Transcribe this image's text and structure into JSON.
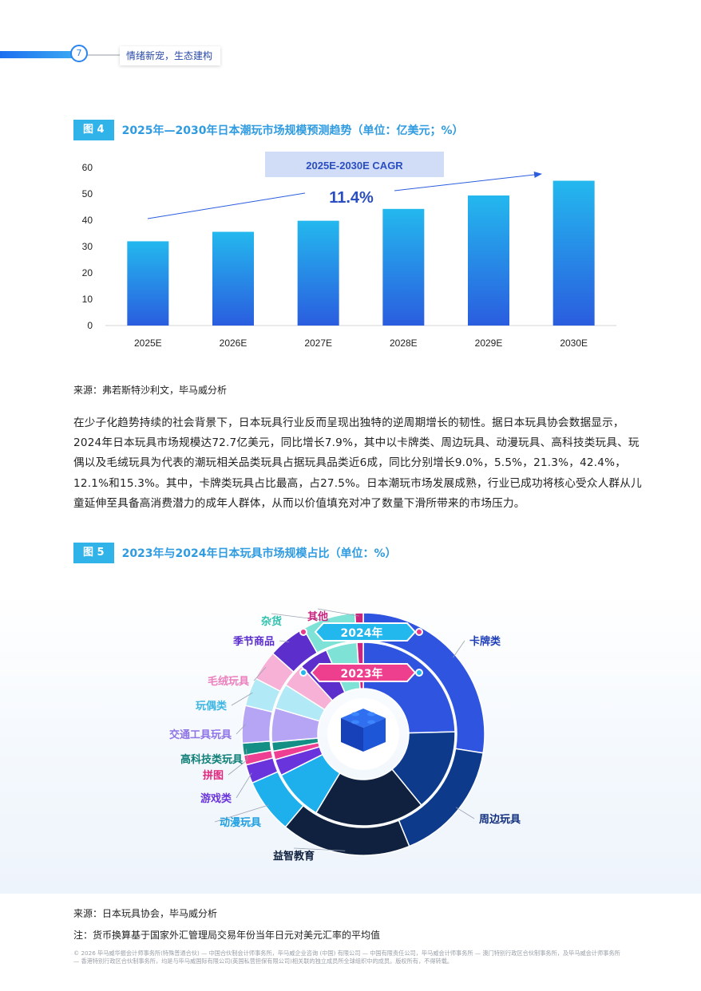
{
  "header": {
    "page_number": "7",
    "section_title": "情绪新宠，生态建构"
  },
  "figure4": {
    "badge": "图 4",
    "title": "2025年—2030年日本潮玩市场规模预测趋势（单位：亿美元；%）",
    "cagr_label": "2025E-2030E CAGR",
    "cagr_value": "11.4%",
    "source": "来源：弗若斯特沙利文，毕马威分析"
  },
  "chart_data": [
    {
      "type": "bar",
      "categories": [
        "2025E",
        "2026E",
        "2027E",
        "2028E",
        "2029E",
        "2030E"
      ],
      "values": [
        32,
        35.6,
        39.8,
        44.3,
        49.4,
        55
      ],
      "ylim": [
        0,
        60
      ],
      "yticks": [
        0,
        10,
        20,
        30,
        40,
        50,
        60
      ],
      "grid": false,
      "gradient_colors": [
        "#24b8ee",
        "#2a5ddf"
      ]
    },
    {
      "type": "pie",
      "rings": [
        {
          "name": "2024年",
          "labels": [
            "卡牌类",
            "周边玩具",
            "益智教育",
            "动漫玩具",
            "游戏类",
            "拼图",
            "高科技类玩具",
            "交通工具玩具",
            "玩偶类",
            "毛绒玩具",
            "季节商品",
            "杂货",
            "其他"
          ],
          "values": [
            27.5,
            16.3,
            17.3,
            7.3,
            2.5,
            1.3,
            1.6,
            5.0,
            3.8,
            4.0,
            5.2,
            7.1,
            1.1
          ]
        },
        {
          "name": "2023年",
          "labels": [
            "卡牌类",
            "周边玩具",
            "益智教育",
            "动漫玩具",
            "游戏类",
            "拼图",
            "高科技类玩具",
            "交通工具玩具",
            "玩偶类",
            "毛绒玩具",
            "季节商品",
            "杂货",
            "其他"
          ],
          "values": [
            24.6,
            14.5,
            19.5,
            9.0,
            2.9,
            1.5,
            1.6,
            6.0,
            4.4,
            4.2,
            5.2,
            5.5,
            1.1
          ]
        }
      ],
      "colors": [
        "#2f54e0",
        "#0e3a8c",
        "#10213f",
        "#1eb0ec",
        "#6a34dc",
        "#ef3f92",
        "#138f86",
        "#b6a4f4",
        "#b2e9f6",
        "#f7b0d6",
        "#5c2fcd",
        "#7fe2d6",
        "#c9247e"
      ],
      "label_colors": [
        "#1e3eb8",
        "#12307d",
        "#10213f",
        "#1d9fe0",
        "#6a34dc",
        "#e0287d",
        "#0f7f77",
        "#8f74e6",
        "#3db6e2",
        "#ec7fbd",
        "#5c2fcd",
        "#2fc1ad",
        "#c9247e"
      ]
    }
  ],
  "paragraph": "在少子化趋势持续的社会背景下，日本玩具行业反而呈现出独特的逆周期增长的韧性。据日本玩具协会数据显示，2024年日本玩具市场规模达72.7亿美元，同比增长7.9%，其中以卡牌类、周边玩具、动漫玩具、高科技类玩具、玩偶以及毛绒玩具为代表的潮玩相关品类玩具占据玩具品类近6成，同比分别增长9.0%，5.5%，21.3%，42.4%，12.1%和15.3%。其中，卡牌类玩具占比最高，占27.5%。日本潮玩市场发展成熟，行业已成功将核心受众人群从儿童延伸至具备高消费潜力的成年人群体，从而以价值填充对冲了数量下滑所带来的市场压力。",
  "figure5": {
    "badge": "图 5",
    "title": "2023年与2024年日本玩具市场规模占比（单位：%）",
    "ring_outer_label": "2024年",
    "ring_inner_label": "2023年",
    "source": "来源：日本玩具协会，毕马威分析",
    "note": "注：货币换算基于国家外汇管理局交易年份当年日元对美元汇率的平均值"
  },
  "footer": "© 2026 毕马威华振会计师事务所(特殊普通合伙) — 中国合伙制会计师事务所，毕马威企业咨询 (中国) 有限公司 — 中国有限责任公司，毕马威会计师事务所 — 澳门特别行政区合伙制事务所，及毕马威会计师事务所 — 香港特别行政区合伙制事务所，均是与毕马威国际有限公司(英国私营担保有限公司)相关联的独立成员所全球组织中的成员。版权所有，不得转载。"
}
